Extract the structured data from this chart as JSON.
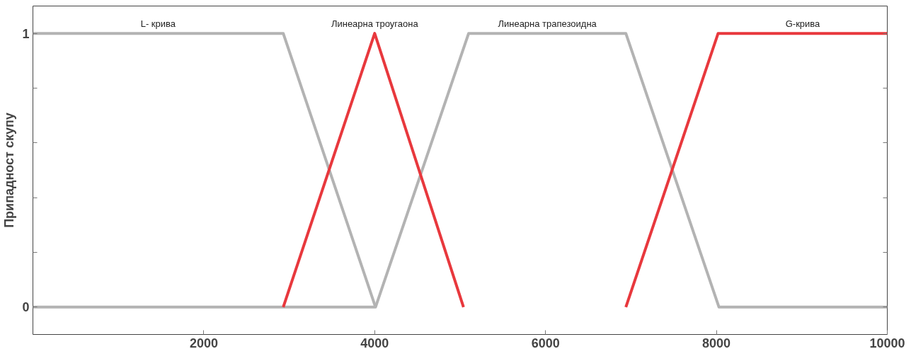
{
  "chart_data": {
    "type": "line",
    "ylabel": "Припадност скупу",
    "xlim": [
      0,
      10000
    ],
    "xticks": [
      2000,
      4000,
      6000,
      8000,
      10000
    ],
    "ylim": [
      -0.1,
      1.1
    ],
    "yticks": [
      0,
      {
        "value": 0.2,
        "label": null
      },
      {
        "value": 0.4,
        "label": null
      },
      {
        "value": 0.6,
        "label": null
      },
      {
        "value": 0.8,
        "label": null
      },
      1
    ],
    "grid": false,
    "line_style": "solid",
    "series": [
      {
        "name": "L- крива",
        "color": "#b3b3b3",
        "x": [
          0,
          2930,
          4010
        ],
        "values": [
          1,
          1,
          0
        ]
      },
      {
        "name": "Линеарна трапезоидна",
        "color": "#b3b3b3",
        "x": [
          0,
          4010,
          5100,
          6940,
          8030,
          10000
        ],
        "values": [
          0,
          0,
          1,
          1,
          0,
          0
        ]
      },
      {
        "name": "Линеарна троугаона",
        "color": "#e8383d",
        "x": [
          2930,
          4000,
          5040
        ],
        "values": [
          0,
          1,
          0
        ]
      },
      {
        "name": "G-крива",
        "color": "#e8383d",
        "x": [
          6940,
          8020,
          10000
        ],
        "values": [
          0,
          1,
          1
        ]
      }
    ]
  }
}
